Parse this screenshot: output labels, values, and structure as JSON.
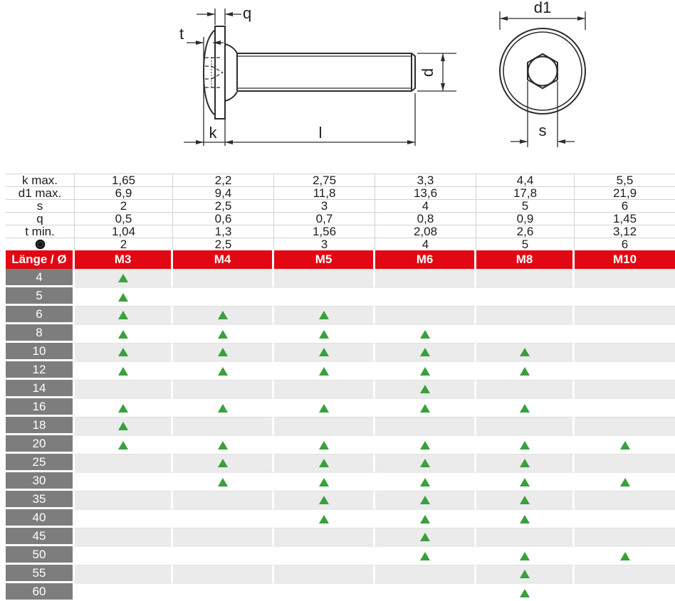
{
  "colors": {
    "header_red": "#e30613",
    "length_column_gray": "#7d7d7d",
    "alt_row_gray": "#ebebeb",
    "triangle_green": "#3aa03c"
  },
  "drawing": {
    "side_view_labels": {
      "q": "q",
      "t": "t",
      "k": "k",
      "l": "l",
      "d": "d"
    },
    "front_view_labels": {
      "d1": "d1",
      "s": "s"
    }
  },
  "spec_table": {
    "rows": [
      {
        "label": "k max.",
        "values": [
          "1,65",
          "2,2",
          "2,75",
          "3,3",
          "4,4",
          "5,5"
        ]
      },
      {
        "label": "d1 max.",
        "values": [
          "6,9",
          "9,4",
          "11,8",
          "13,6",
          "17,8",
          "21,9"
        ]
      },
      {
        "label": "s",
        "values": [
          "2",
          "2,5",
          "3",
          "4",
          "5",
          "6"
        ]
      },
      {
        "label": "q",
        "values": [
          "0,5",
          "0,6",
          "0,7",
          "0,8",
          "0,9",
          "1,45"
        ]
      },
      {
        "label": "t min.",
        "values": [
          "1,04",
          "1,3",
          "1,56",
          "2,08",
          "2,6",
          "3,12"
        ]
      },
      {
        "label": "",
        "icon": "hex-socket-icon",
        "values": [
          "2",
          "2,5",
          "3",
          "4",
          "5",
          "6"
        ]
      }
    ]
  },
  "availability_table": {
    "header": {
      "corner": "Länge / Ø",
      "columns": [
        "M3",
        "M4",
        "M5",
        "M6",
        "M8",
        "M10"
      ]
    },
    "rows": [
      {
        "length": "4",
        "available": [
          1,
          0,
          0,
          0,
          0,
          0
        ]
      },
      {
        "length": "5",
        "available": [
          1,
          0,
          0,
          0,
          0,
          0
        ]
      },
      {
        "length": "6",
        "available": [
          1,
          1,
          1,
          0,
          0,
          0
        ]
      },
      {
        "length": "8",
        "available": [
          1,
          1,
          1,
          1,
          0,
          0
        ]
      },
      {
        "length": "10",
        "available": [
          1,
          1,
          1,
          1,
          1,
          0
        ]
      },
      {
        "length": "12",
        "available": [
          1,
          1,
          1,
          1,
          1,
          0
        ]
      },
      {
        "length": "14",
        "available": [
          0,
          0,
          0,
          1,
          0,
          0
        ]
      },
      {
        "length": "16",
        "available": [
          1,
          1,
          1,
          1,
          1,
          0
        ]
      },
      {
        "length": "18",
        "available": [
          1,
          0,
          0,
          0,
          0,
          0
        ]
      },
      {
        "length": "20",
        "available": [
          1,
          1,
          1,
          1,
          1,
          1
        ]
      },
      {
        "length": "25",
        "available": [
          0,
          1,
          1,
          1,
          1,
          0
        ]
      },
      {
        "length": "30",
        "available": [
          0,
          1,
          1,
          1,
          1,
          1
        ]
      },
      {
        "length": "35",
        "available": [
          0,
          0,
          1,
          1,
          1,
          0
        ]
      },
      {
        "length": "40",
        "available": [
          0,
          0,
          1,
          1,
          1,
          0
        ]
      },
      {
        "length": "45",
        "available": [
          0,
          0,
          0,
          1,
          0,
          0
        ]
      },
      {
        "length": "50",
        "available": [
          0,
          0,
          0,
          1,
          1,
          1
        ]
      },
      {
        "length": "55",
        "available": [
          0,
          0,
          0,
          0,
          1,
          0
        ]
      },
      {
        "length": "60",
        "available": [
          0,
          0,
          0,
          0,
          1,
          0
        ]
      }
    ]
  }
}
